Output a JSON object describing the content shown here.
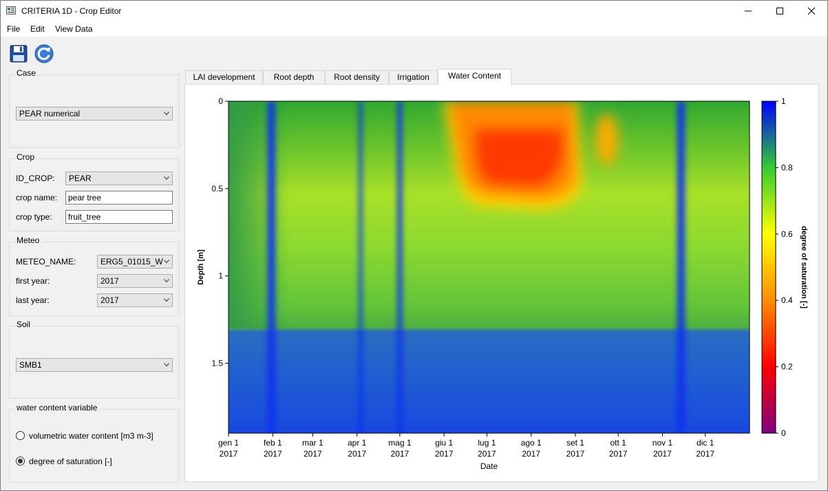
{
  "window": {
    "title": "CRITERIA 1D - Crop Editor",
    "buttons": [
      "minimize",
      "maximize",
      "close"
    ]
  },
  "menu": {
    "items": [
      "File",
      "Edit",
      "View Data"
    ]
  },
  "toolbar": {
    "tools": [
      "save-icon",
      "refresh-icon"
    ]
  },
  "case": {
    "title": "Case",
    "selected": "PEAR numerical"
  },
  "crop": {
    "title": "Crop",
    "id_label": "ID_CROP:",
    "id_value": "PEAR",
    "name_label": "crop name:",
    "name_value": "pear tree",
    "type_label": "crop type:",
    "type_value": "fruit_tree"
  },
  "meteo": {
    "title": "Meteo",
    "name_label": "METEO_NAME:",
    "name_value": "ERG5_01015_W",
    "first_label": "first year:",
    "first_value": "2017",
    "last_label": "last year:",
    "last_value": "2017"
  },
  "soil": {
    "title": "Soil",
    "selected": "SMB1"
  },
  "water_var": {
    "title": "water content variable",
    "options": [
      "volumetric water content [m3 m-3]",
      "degree of saturation [-]"
    ],
    "selected_index": 1
  },
  "tabs": {
    "items": [
      "LAI development",
      "Root depth",
      "Root density",
      "Irrigation",
      "Water Content"
    ],
    "active_index": 4
  },
  "chart_data": {
    "type": "heatmap",
    "xlabel": "Date",
    "ylabel": "Depth [m]",
    "colorbar_label": "degree of saturation [-]",
    "x_ticks": [
      {
        "label": "gen 1",
        "year": "2017",
        "day": 0
      },
      {
        "label": "feb 1",
        "year": "2017",
        "day": 31
      },
      {
        "label": "mar 1",
        "year": "2017",
        "day": 59
      },
      {
        "label": "apr 1",
        "year": "2017",
        "day": 90
      },
      {
        "label": "mag 1",
        "year": "2017",
        "day": 120
      },
      {
        "label": "giu 1",
        "year": "2017",
        "day": 151
      },
      {
        "label": "lug 1",
        "year": "2017",
        "day": 181
      },
      {
        "label": "ago 1",
        "year": "2017",
        "day": 212
      },
      {
        "label": "set 1",
        "year": "2017",
        "day": 243
      },
      {
        "label": "ott 1",
        "year": "2017",
        "day": 273
      },
      {
        "label": "nov 1",
        "year": "2017",
        "day": 304
      },
      {
        "label": "dic 1",
        "year": "2017",
        "day": 334
      }
    ],
    "xlim": [
      0,
      365
    ],
    "y_ticks": [
      {
        "label": "0",
        "v": 0
      },
      {
        "label": "0.5",
        "v": 0.5
      },
      {
        "label": "1",
        "v": 1
      },
      {
        "label": "1.5",
        "v": 1.5
      }
    ],
    "ylim": [
      0,
      1.9
    ],
    "colorbar_ticks": [
      {
        "label": "0",
        "v": 0
      },
      {
        "label": "0.2",
        "v": 0.2
      },
      {
        "label": "0.4",
        "v": 0.4
      },
      {
        "label": "0.6",
        "v": 0.6
      },
      {
        "label": "0.8",
        "v": 0.8
      },
      {
        "label": "1",
        "v": 1
      }
    ],
    "colorbar_range": [
      0,
      1
    ],
    "colormap": [
      "#800080",
      "#ff0000",
      "#ff8c00",
      "#ffff00",
      "#33cc33",
      "#0000ff"
    ],
    "wet_days": [
      28,
      29,
      30,
      31,
      32,
      92,
      93,
      119,
      120,
      121,
      315,
      316,
      317,
      318,
      319
    ],
    "deep_layer_top": 1.3
  }
}
